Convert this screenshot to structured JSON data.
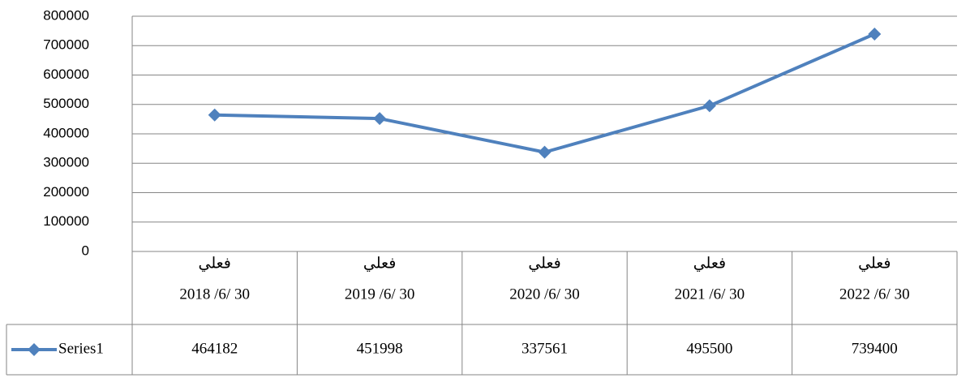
{
  "chart_data": {
    "type": "line",
    "categories": [
      [
        "فعلي",
        "2018 /6/ 30"
      ],
      [
        "فعلي",
        "2019 /6/ 30"
      ],
      [
        "فعلي",
        "2020 /6/ 30"
      ],
      [
        "فعلي",
        "2021 /6/ 30"
      ],
      [
        "فعلي",
        "2022 /6/ 30"
      ]
    ],
    "series": [
      {
        "name": "Series1",
        "color": "#4f81bd",
        "values": [
          464182,
          451998,
          337561,
          495500,
          739400
        ]
      }
    ],
    "ylim": [
      0,
      800000
    ],
    "yticks": [
      0,
      100000,
      200000,
      300000,
      400000,
      500000,
      600000,
      700000,
      800000
    ],
    "grid": true,
    "data_table": true
  }
}
